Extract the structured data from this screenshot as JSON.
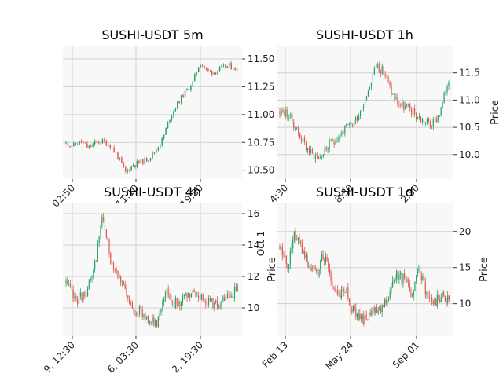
{
  "chart_data": [
    {
      "type": "candlestick",
      "title": "SUSHI-USDT 5m",
      "ylabel": "",
      "y_side": "right",
      "ylim": [
        10.42,
        11.62
      ],
      "yticks": [
        "10.50",
        "10.75",
        "11.00",
        "11.25",
        "11.50"
      ],
      "ytick_values": [
        10.5,
        10.75,
        11.0,
        11.25,
        11.5
      ],
      "xticks": [
        "02:50",
        "11:10",
        "19:30"
      ],
      "grid": true,
      "colors": {
        "up": "#26a269",
        "down": "#e05a4f"
      },
      "close_path": [
        10.74,
        10.72,
        10.76,
        10.7,
        10.75,
        10.76,
        10.72,
        10.62,
        10.48,
        10.55,
        10.57,
        10.6,
        10.67,
        10.78,
        10.98,
        11.1,
        11.2,
        11.28,
        11.47,
        11.39,
        11.38,
        11.42,
        11.44,
        11.4
      ]
    },
    {
      "type": "candlestick",
      "title": "SUSHI-USDT 1h",
      "ylabel": "Price",
      "y_side": "right",
      "ylim": [
        9.55,
        12.0
      ],
      "yticks": [
        "10.0",
        "10.5",
        "11.0",
        "11.5"
      ],
      "ytick_values": [
        10.0,
        10.5,
        11.0,
        11.5
      ],
      "xticks": [
        "4:30",
        "8:30",
        "2:30"
      ],
      "grid": true,
      "colors": {
        "up": "#26a269",
        "down": "#e05a4f"
      },
      "close_path": [
        10.8,
        10.75,
        10.5,
        10.2,
        10.0,
        9.95,
        10.15,
        10.3,
        10.45,
        10.55,
        10.8,
        11.2,
        11.65,
        11.5,
        11.1,
        10.9,
        10.85,
        10.7,
        10.6,
        10.55,
        10.8,
        11.4
      ]
    },
    {
      "type": "candlestick",
      "title": "SUSHI-USDT 4h",
      "ylabel": "Price",
      "y_side": "right",
      "ylim": [
        8.2,
        16.7
      ],
      "yticks": [
        "10",
        "12",
        "14",
        "16"
      ],
      "ytick_values": [
        10,
        12,
        14,
        16
      ],
      "xticks": [
        "9, 12:30",
        "6, 03:30",
        "2, 19:30"
      ],
      "grid": true,
      "colors": {
        "up": "#26a269",
        "down": "#e05a4f"
      },
      "close_path": [
        11.6,
        10.5,
        10.8,
        12.0,
        15.8,
        13.0,
        12.0,
        10.2,
        9.8,
        9.4,
        8.9,
        11.2,
        10.3,
        10.5,
        10.9,
        10.7,
        10.4,
        10.2,
        10.7,
        11.2
      ]
    },
    {
      "type": "candlestick",
      "title": "SUSHI-USDT 1d",
      "ylabel": "Price",
      "y_side": "right",
      "ylim": [
        5.5,
        24.0
      ],
      "yticks": [
        "10",
        "15",
        "20"
      ],
      "ytick_values": [
        10,
        15,
        20
      ],
      "xticks": [
        "Feb 13",
        "May 24",
        "Sep 01"
      ],
      "grid": true,
      "colors": {
        "up": "#26a269",
        "down": "#e05a4f"
      },
      "close_path": [
        18,
        15,
        20,
        17,
        15,
        14,
        17,
        13,
        11,
        12,
        9,
        8,
        8,
        9,
        10,
        12,
        14,
        13,
        11,
        15,
        11,
        10,
        11,
        10.5
      ]
    }
  ],
  "overlap_text": "Oct 1"
}
